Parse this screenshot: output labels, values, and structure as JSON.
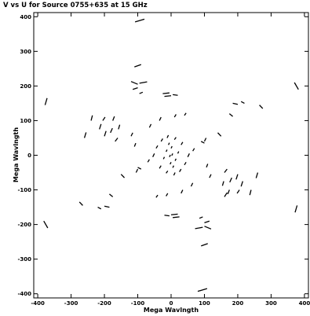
{
  "chart_data": {
    "type": "scatter",
    "title": "V vs U for Source 0755+635 at 15 GHz",
    "xlabel": "Mega Wavlngth",
    "ylabel": "Mega Wavlngth",
    "xlim": [
      -412,
      412
    ],
    "ylim": [
      -412,
      412
    ],
    "grid": false,
    "xticks": [
      -400,
      -300,
      -200,
      -100,
      0,
      100,
      200,
      300,
      400
    ],
    "yticks": [
      -400,
      -300,
      -200,
      -100,
      0,
      100,
      200,
      300,
      400
    ],
    "xtick_labels": [
      "-400",
      "-300",
      "-200",
      "-100",
      "0",
      "100",
      "200",
      "300",
      "400"
    ],
    "ytick_labels": [
      "-400",
      "-300",
      "-200",
      "-100",
      "0",
      "100",
      "200",
      "300",
      "400"
    ],
    "track_color": "#000000",
    "series": [
      {
        "values": [
          [
            [
              -108,
              385
            ],
            [
              -80,
              393
            ]
          ],
          [
            [
              108,
              -385
            ],
            [
              80,
              -393
            ]
          ],
          [
            [
              -110,
              255
            ],
            [
              -90,
              262
            ]
          ],
          [
            [
              110,
              -255
            ],
            [
              90,
              -262
            ]
          ],
          [
            [
              -120,
              213
            ],
            [
              -100,
              205
            ]
          ],
          [
            [
              120,
              -213
            ],
            [
              100,
              -205
            ]
          ],
          [
            [
              -95,
              208
            ],
            [
              -72,
              212
            ]
          ],
          [
            [
              95,
              -208
            ],
            [
              72,
              -212
            ]
          ],
          [
            [
              -115,
              190
            ],
            [
              -100,
              195
            ]
          ],
          [
            [
              115,
              -190
            ],
            [
              100,
              -195
            ]
          ],
          [
            [
              -95,
              178
            ],
            [
              -85,
              182
            ]
          ],
          [
            [
              95,
              -178
            ],
            [
              85,
              -182
            ]
          ],
          [
            [
              -25,
              178
            ],
            [
              -5,
              180
            ]
          ],
          [
            [
              25,
              -178
            ],
            [
              5,
              -180
            ]
          ],
          [
            [
              -20,
              170
            ],
            [
              0,
              172
            ]
          ],
          [
            [
              20,
              -170
            ],
            [
              0,
              -172
            ]
          ],
          [
            [
              5,
              175
            ],
            [
              20,
              173
            ]
          ],
          [
            [
              -5,
              -175
            ],
            [
              -20,
              -173
            ]
          ],
          [
            [
              -378,
              145
            ],
            [
              -372,
              165
            ]
          ],
          [
            [
              378,
              -145
            ],
            [
              372,
              -165
            ]
          ],
          [
            [
              -240,
              100
            ],
            [
              -236,
              115
            ]
          ],
          [
            [
              240,
              -100
            ],
            [
              236,
              -115
            ]
          ],
          [
            [
              -260,
              50
            ],
            [
              -255,
              66
            ]
          ],
          [
            [
              260,
              -50
            ],
            [
              255,
              -66
            ]
          ],
          [
            [
              -215,
              75
            ],
            [
              -210,
              90
            ]
          ],
          [
            [
              215,
              -75
            ],
            [
              210,
              -90
            ]
          ],
          [
            [
              -205,
              100
            ],
            [
              -198,
              110
            ]
          ],
          [
            [
              205,
              -100
            ],
            [
              198,
              -110
            ]
          ],
          [
            [
              -175,
              100
            ],
            [
              -170,
              112
            ]
          ],
          [
            [
              175,
              -100
            ],
            [
              170,
              -112
            ]
          ],
          [
            [
              -200,
              55
            ],
            [
              -195,
              70
            ]
          ],
          [
            [
              200,
              -55
            ],
            [
              195,
              -70
            ]
          ],
          [
            [
              -182,
              65
            ],
            [
              -176,
              78
            ]
          ],
          [
            [
              182,
              -65
            ],
            [
              176,
              -78
            ]
          ],
          [
            [
              -158,
              75
            ],
            [
              -154,
              88
            ]
          ],
          [
            [
              158,
              -75
            ],
            [
              154,
              -88
            ]
          ],
          [
            [
              -168,
              40
            ],
            [
              -160,
              50
            ]
          ],
          [
            [
              168,
              -40
            ],
            [
              160,
              -50
            ]
          ],
          [
            [
              -120,
              55
            ],
            [
              -115,
              65
            ]
          ],
          [
            [
              120,
              -55
            ],
            [
              115,
              -65
            ]
          ],
          [
            [
              -110,
              25
            ],
            [
              -106,
              35
            ]
          ],
          [
            [
              110,
              -25
            ],
            [
              106,
              -35
            ]
          ],
          [
            [
              -105,
              -50
            ],
            [
              -100,
              -40
            ]
          ],
          [
            [
              105,
              50
            ],
            [
              100,
              40
            ]
          ],
          [
            [
              -70,
              -20
            ],
            [
              -65,
              -12
            ]
          ],
          [
            [
              70,
              20
            ],
            [
              65,
              12
            ]
          ],
          [
            [
              -55,
              -5
            ],
            [
              -50,
              5
            ]
          ],
          [
            [
              55,
              5
            ],
            [
              50,
              -5
            ]
          ],
          [
            [
              -45,
              20
            ],
            [
              -40,
              28
            ]
          ],
          [
            [
              45,
              -20
            ],
            [
              40,
              -28
            ]
          ],
          [
            [
              -30,
              40
            ],
            [
              -25,
              48
            ]
          ],
          [
            [
              30,
              -40
            ],
            [
              25,
              -48
            ]
          ],
          [
            [
              -12,
              50
            ],
            [
              -8,
              58
            ]
          ],
          [
            [
              12,
              -50
            ],
            [
              8,
              -58
            ]
          ],
          [
            [
              10,
              45
            ],
            [
              15,
              52
            ]
          ],
          [
            [
              -10,
              -45
            ],
            [
              -15,
              -52
            ]
          ],
          [
            [
              30,
              30
            ],
            [
              35,
              38
            ]
          ],
          [
            [
              -30,
              -30
            ],
            [
              -35,
              -38
            ]
          ],
          [
            [
              -8,
              30
            ],
            [
              -5,
              36
            ]
          ],
          [
            [
              8,
              -30
            ],
            [
              5,
              -36
            ]
          ],
          [
            [
              0,
              20
            ],
            [
              3,
              26
            ]
          ],
          [
            [
              0,
              -20
            ],
            [
              -3,
              -26
            ]
          ],
          [
            [
              -15,
              10
            ],
            [
              -12,
              16
            ]
          ],
          [
            [
              15,
              -10
            ],
            [
              12,
              -16
            ]
          ],
          [
            [
              20,
              5
            ],
            [
              23,
              11
            ]
          ],
          [
            [
              -20,
              -5
            ],
            [
              -23,
              -11
            ]
          ],
          [
            [
              -5,
              -5
            ],
            [
              -2,
              1
            ]
          ],
          [
            [
              5,
              5
            ],
            [
              2,
              -1
            ]
          ],
          [
            [
              -35,
              100
            ],
            [
              -30,
              110
            ]
          ],
          [
            [
              35,
              -100
            ],
            [
              30,
              -110
            ]
          ],
          [
            [
              -65,
              80
            ],
            [
              -60,
              90
            ]
          ],
          [
            [
              65,
              -80
            ],
            [
              60,
              -90
            ]
          ],
          [
            [
              10,
              110
            ],
            [
              15,
              118
            ]
          ],
          [
            [
              -10,
              -110
            ],
            [
              -15,
              -118
            ]
          ],
          [
            [
              40,
              115
            ],
            [
              45,
              122
            ]
          ],
          [
            [
              -40,
              -115
            ],
            [
              -45,
              -122
            ]
          ],
          [
            [
              210,
              155
            ],
            [
              220,
              150
            ]
          ],
          [
            [
              -210,
              -155
            ],
            [
              -220,
              -150
            ]
          ],
          [
            [
              185,
              150
            ],
            [
              200,
              147
            ]
          ],
          [
            [
              -185,
              -150
            ],
            [
              -200,
              -147
            ]
          ],
          [
            [
              175,
              120
            ],
            [
              185,
              112
            ]
          ],
          [
            [
              -175,
              -120
            ],
            [
              -185,
              -112
            ]
          ],
          [
            [
              265,
              145
            ],
            [
              275,
              135
            ]
          ],
          [
            [
              -265,
              -145
            ],
            [
              -275,
              -135
            ]
          ],
          [
            [
              370,
              210
            ],
            [
              382,
              190
            ]
          ],
          [
            [
              -370,
              -210
            ],
            [
              -382,
              -190
            ]
          ],
          [
            [
              140,
              65
            ],
            [
              150,
              55
            ]
          ],
          [
            [
              -140,
              -65
            ],
            [
              -150,
              -55
            ]
          ],
          [
            [
              90,
              40
            ],
            [
              100,
              35
            ]
          ],
          [
            [
              -90,
              -40
            ],
            [
              -100,
              -35
            ]
          ],
          [
            [
              160,
              -120
            ],
            [
              168,
              -108
            ]
          ]
        ]
      }
    ]
  }
}
